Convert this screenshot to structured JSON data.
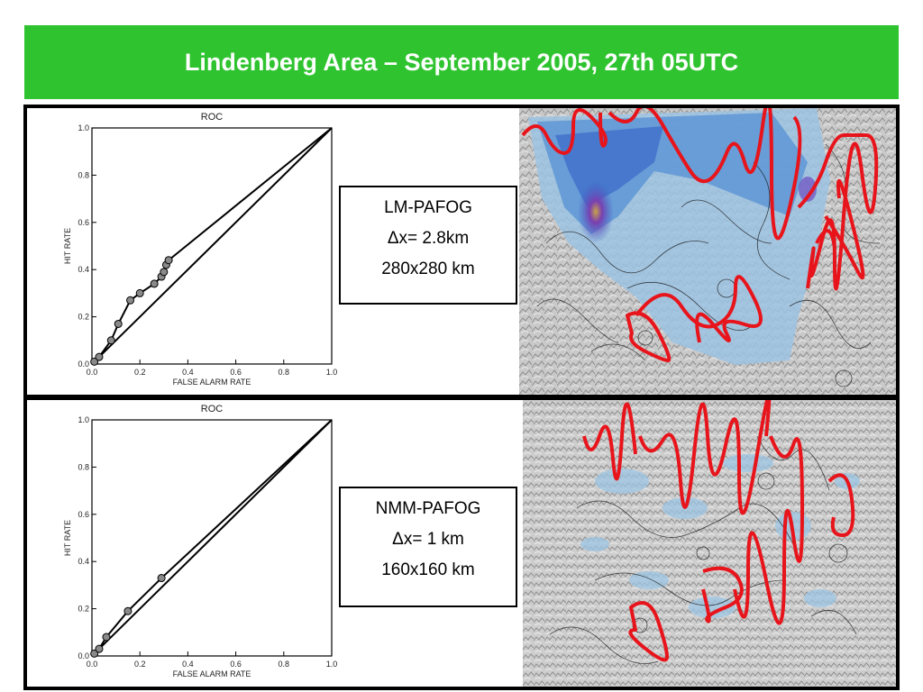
{
  "title": "Lindenberg Area – September 2005, 27th 05UTC",
  "panels": [
    {
      "model": "LM-PAFOG",
      "resolution": "Δx= 2.8km",
      "domain": "280x280 km"
    },
    {
      "model": "NMM-PAFOG",
      "resolution": "Δx= 1 km",
      "domain": "160x160 km"
    }
  ],
  "chart_data": [
    {
      "type": "line",
      "title": "ROC",
      "xlabel": "FALSE ALARM RATE",
      "ylabel": "HIT RATE",
      "xlim": [
        0,
        1
      ],
      "ylim": [
        0,
        1
      ],
      "ticks": [
        "0.0",
        "0.2",
        "0.4",
        "0.6",
        "0.8",
        "1.0"
      ],
      "series": [
        {
          "x": [
            0,
            0.01,
            0.03,
            0.08,
            0.11,
            0.16,
            0.2,
            0.26,
            0.29,
            0.3,
            0.31,
            0.32,
            1.0
          ],
          "y": [
            0,
            0.01,
            0.03,
            0.1,
            0.17,
            0.27,
            0.3,
            0.34,
            0.37,
            0.39,
            0.42,
            0.44,
            1.0
          ]
        }
      ],
      "diagonal": true
    },
    {
      "type": "line",
      "title": "ROC",
      "xlabel": "FALSE ALARM RATE",
      "ylabel": "HIT RATE",
      "xlim": [
        0,
        1
      ],
      "ylim": [
        0,
        1
      ],
      "ticks": [
        "0.0",
        "0.2",
        "0.4",
        "0.6",
        "0.8",
        "1.0"
      ],
      "series": [
        {
          "x": [
            0,
            0.01,
            0.03,
            0.06,
            0.15,
            0.29,
            1.0
          ],
          "y": [
            0,
            0.01,
            0.03,
            0.08,
            0.19,
            0.33,
            1.0
          ]
        }
      ],
      "diagonal": true
    }
  ]
}
